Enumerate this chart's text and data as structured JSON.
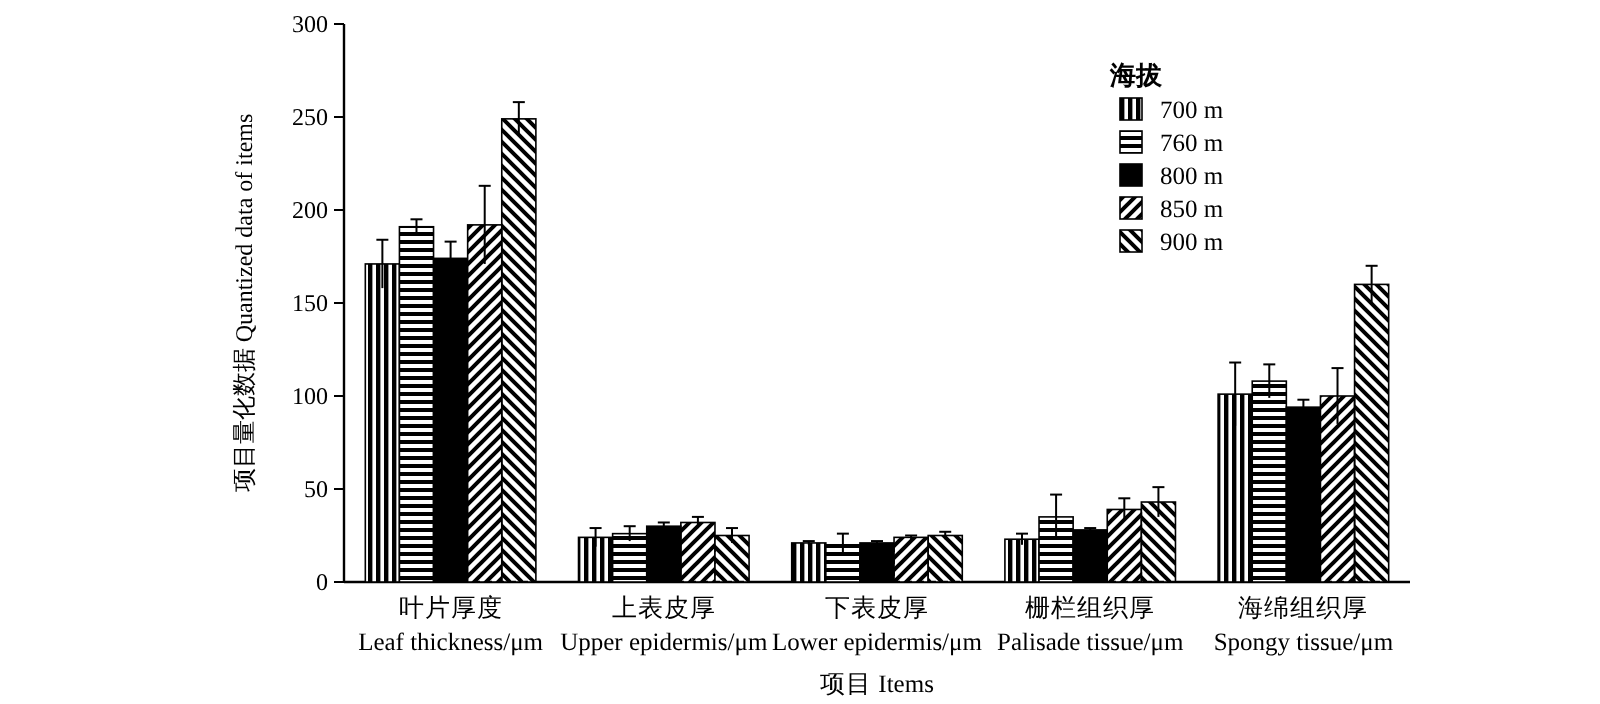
{
  "chart_data": {
    "type": "bar",
    "xlabel": "项目 Items",
    "ylabel": "项目量化数据 Quantized data of items",
    "legend_title": "海拔",
    "legend": "top right",
    "grid": false,
    "categories": [
      "叶片厚度\nLeaf thickness/μm",
      "上表皮厚\nUpper epidermis/μm",
      "下表皮厚\nLower epidermis/μm",
      "栅栏组织厚\nPalisade tissue/μm",
      "海绵组织厚\nSpongy tissue/μm"
    ],
    "ylim": [
      0,
      300
    ],
    "yticks": [
      0,
      50,
      100,
      150,
      200,
      250,
      300
    ],
    "series": [
      {
        "name": "700 m",
        "color": "#000000",
        "values": [
          171,
          24,
          21,
          23,
          101
        ],
        "errors": [
          13,
          5,
          1,
          3,
          17
        ]
      },
      {
        "name": "760 m",
        "color": "#000000",
        "values": [
          191,
          26,
          20,
          35,
          108
        ],
        "errors": [
          4,
          4,
          6,
          12,
          9
        ]
      },
      {
        "name": "800 m",
        "color": "#000000",
        "values": [
          174,
          30,
          21,
          28,
          94
        ],
        "errors": [
          9,
          2,
          1,
          1,
          4
        ]
      },
      {
        "name": "850 m",
        "color": "#000000",
        "values": [
          192,
          32,
          24,
          39,
          100
        ],
        "errors": [
          21,
          3,
          1,
          6,
          15
        ]
      },
      {
        "name": "900 m",
        "color": "#000000",
        "values": [
          249,
          25,
          25,
          43,
          160
        ],
        "errors": [
          9,
          4,
          2,
          8,
          10
        ]
      }
    ]
  }
}
